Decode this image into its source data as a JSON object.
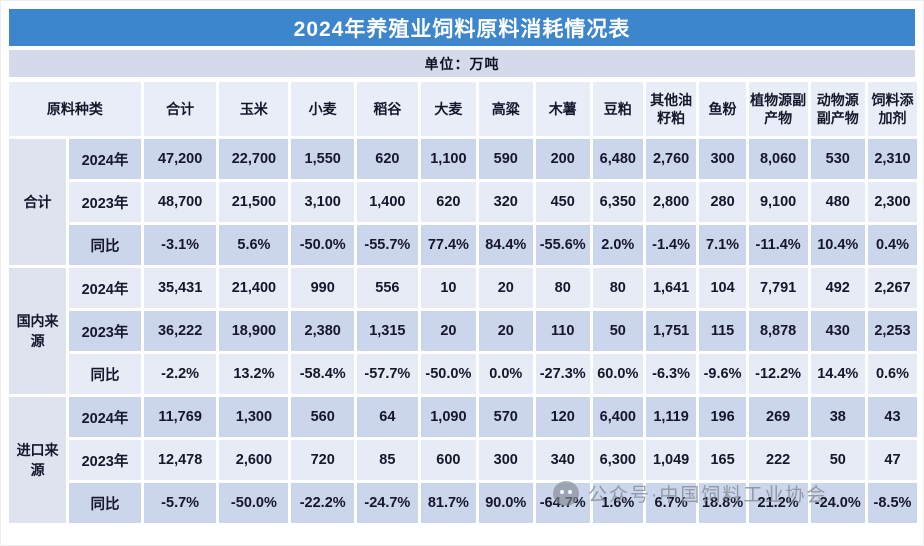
{
  "title": "2024年养殖业饲料原料消耗情况表",
  "unit_label": "单位：万吨",
  "watermark_text": "公众号·中国饲料工业协会",
  "colors": {
    "title_bar": "#3d85cd",
    "title_text": "#ffffff",
    "unit_bar": "#d4daea",
    "header_cell": "#e9edf7",
    "row_medium": "#cbd5eb",
    "row_light": "#e7ebf6",
    "group_cell": "#dfe3f0",
    "text": "#16162c",
    "watermark": "#828894"
  },
  "chart_data": {
    "type": "table",
    "title": "2024年养殖业饲料原料消耗情况表",
    "unit": "万吨",
    "columns": [
      "原料种类",
      "合计",
      "玉米",
      "小麦",
      "稻谷",
      "大麦",
      "高粱",
      "木薯",
      "豆粕",
      "其他油籽粕",
      "鱼粉",
      "植物源副产物",
      "动物源副产物",
      "饲料添加剂"
    ],
    "row_groups": [
      {
        "name": "合计",
        "rows": [
          {
            "label": "2024年",
            "values": [
              "47,200",
              "22,700",
              "1,550",
              "620",
              "1,100",
              "590",
              "200",
              "6,480",
              "2,760",
              "300",
              "8,060",
              "530",
              "2,310"
            ]
          },
          {
            "label": "2023年",
            "values": [
              "48,700",
              "21,500",
              "3,100",
              "1,400",
              "620",
              "320",
              "450",
              "6,350",
              "2,800",
              "280",
              "9,100",
              "480",
              "2,300"
            ]
          },
          {
            "label": "同比",
            "values": [
              "-3.1%",
              "5.6%",
              "-50.0%",
              "-55.7%",
              "77.4%",
              "84.4%",
              "-55.6%",
              "2.0%",
              "-1.4%",
              "7.1%",
              "-11.4%",
              "10.4%",
              "0.4%"
            ]
          }
        ]
      },
      {
        "name": "国内来源",
        "rows": [
          {
            "label": "2024年",
            "values": [
              "35,431",
              "21,400",
              "990",
              "556",
              "10",
              "20",
              "80",
              "80",
              "1,641",
              "104",
              "7,791",
              "492",
              "2,267"
            ]
          },
          {
            "label": "2023年",
            "values": [
              "36,222",
              "18,900",
              "2,380",
              "1,315",
              "20",
              "20",
              "110",
              "50",
              "1,751",
              "115",
              "8,878",
              "430",
              "2,253"
            ]
          },
          {
            "label": "同比",
            "values": [
              "-2.2%",
              "13.2%",
              "-58.4%",
              "-57.7%",
              "-50.0%",
              "0.0%",
              "-27.3%",
              "60.0%",
              "-6.3%",
              "-9.6%",
              "-12.2%",
              "14.4%",
              "0.6%"
            ]
          }
        ]
      },
      {
        "name": "进口来源",
        "rows": [
          {
            "label": "2024年",
            "values": [
              "11,769",
              "1,300",
              "560",
              "64",
              "1,090",
              "570",
              "120",
              "6,400",
              "1,119",
              "196",
              "269",
              "38",
              "43"
            ]
          },
          {
            "label": "2023年",
            "values": [
              "12,478",
              "2,600",
              "720",
              "85",
              "600",
              "300",
              "340",
              "6,300",
              "1,049",
              "165",
              "222",
              "50",
              "47"
            ]
          },
          {
            "label": "同比",
            "values": [
              "-5.7%",
              "-50.0%",
              "-22.2%",
              "-24.7%",
              "81.7%",
              "90.0%",
              "-64.7%",
              "1.6%",
              "6.7%",
              "18.8%",
              "21.2%",
              "-24.0%",
              "-8.5%"
            ]
          }
        ]
      }
    ]
  }
}
